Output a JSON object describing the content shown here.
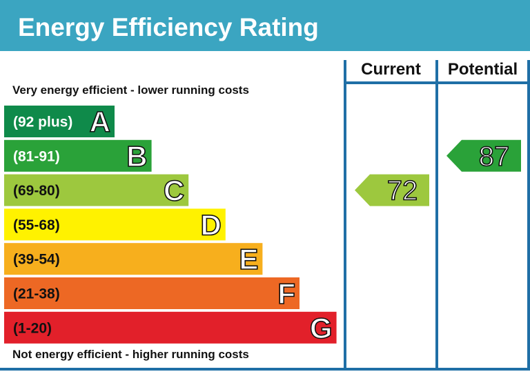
{
  "header": {
    "title": "Energy Efficiency Rating"
  },
  "columns": {
    "current": "Current",
    "potential": "Potential"
  },
  "notes": {
    "top": "Very energy efficient - lower running costs",
    "bottom": "Not energy efficient - higher running costs"
  },
  "chart_data": {
    "type": "bar",
    "title": "Energy Efficiency Rating",
    "bands": [
      {
        "letter": "A",
        "range": "(92 plus)",
        "min": 92,
        "max": 100,
        "color": "#0f8a4a",
        "text_color": "#ffffff"
      },
      {
        "letter": "B",
        "range": "(81-91)",
        "min": 81,
        "max": 91,
        "color": "#2aa239",
        "text_color": "#ffffff"
      },
      {
        "letter": "C",
        "range": "(69-80)",
        "min": 69,
        "max": 80,
        "color": "#9dc83e",
        "text_color": "#111111"
      },
      {
        "letter": "D",
        "range": "(55-68)",
        "min": 55,
        "max": 68,
        "color": "#fff200",
        "text_color": "#111111"
      },
      {
        "letter": "E",
        "range": "(39-54)",
        "min": 39,
        "max": 54,
        "color": "#f7af1d",
        "text_color": "#111111"
      },
      {
        "letter": "F",
        "range": "(21-38)",
        "min": 21,
        "max": 38,
        "color": "#ed6824",
        "text_color": "#111111"
      },
      {
        "letter": "G",
        "range": "(1-20)",
        "min": 1,
        "max": 20,
        "color": "#e2202a",
        "text_color": "#111111"
      }
    ],
    "ratings": {
      "current": {
        "value": 72,
        "band": "C",
        "color": "#9dc83e"
      },
      "potential": {
        "value": 87,
        "band": "B",
        "color": "#2aa239"
      }
    }
  }
}
